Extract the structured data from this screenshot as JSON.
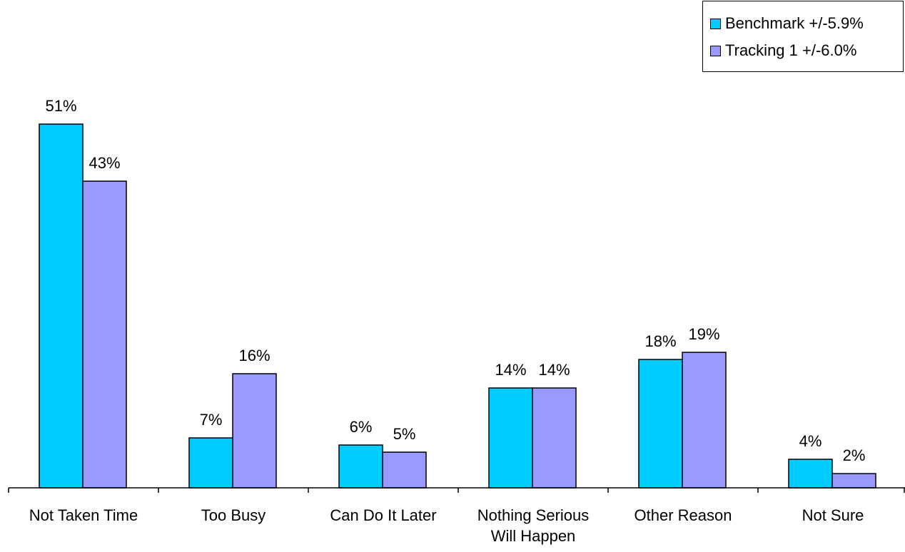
{
  "chart_data": {
    "type": "bar",
    "categories": [
      [
        "Not Taken Time"
      ],
      [
        "Too Busy"
      ],
      [
        "Can Do It Later"
      ],
      [
        "Nothing Serious",
        "Will Happen"
      ],
      [
        "Other Reason"
      ],
      [
        "Not Sure"
      ]
    ],
    "series": [
      {
        "name": "Benchmark +/-5.9%",
        "color": "#00ccff",
        "values": [
          51,
          7,
          6,
          14,
          18,
          4
        ],
        "labels": [
          "51%",
          "7%",
          "6%",
          "14%",
          "18%",
          "4%"
        ]
      },
      {
        "name": "Tracking 1 +/-6.0%",
        "color": "#9999ff",
        "values": [
          43,
          16,
          5,
          14,
          19,
          2
        ],
        "labels": [
          "43%",
          "16%",
          "5%",
          "14%",
          "19%",
          "2%"
        ]
      }
    ],
    "unit": "%",
    "ylim": [
      0,
      60
    ],
    "grid": false,
    "legend_position": "top-right"
  }
}
